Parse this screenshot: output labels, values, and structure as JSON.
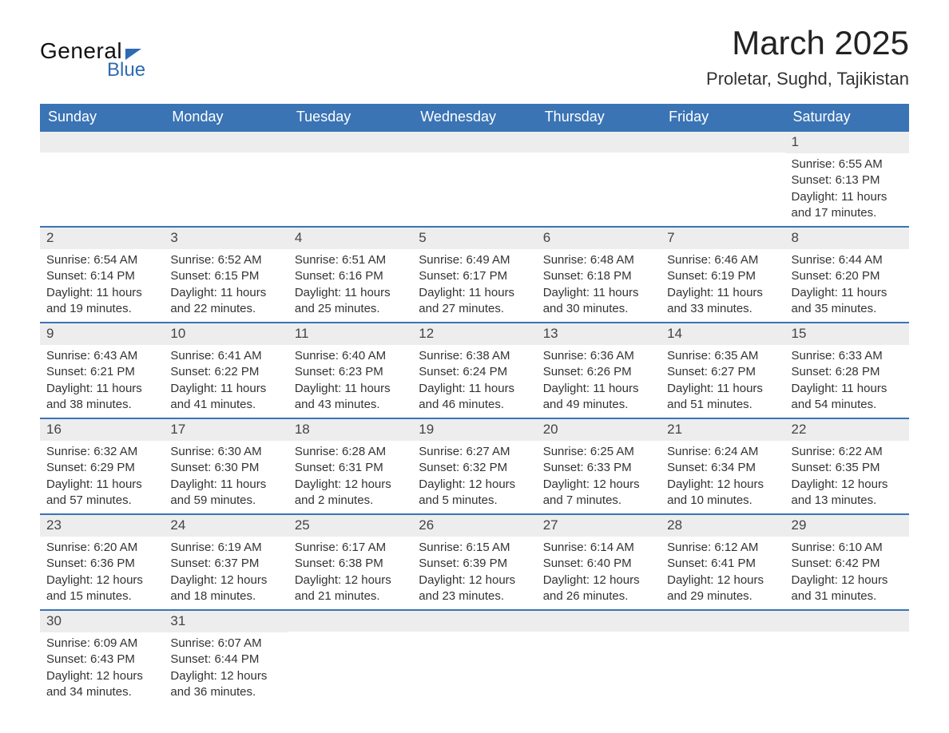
{
  "brand": {
    "word1": "General",
    "word2": "Blue",
    "accent": "#2f6bb0"
  },
  "title": "March 2025",
  "subtitle": "Proletar, Sughd, Tajikistan",
  "colors": {
    "header_bg": "#3a74b4",
    "header_text": "#ffffff",
    "strip_bg": "#ededed",
    "week_divider": "#3a74b4",
    "body_text": "#333333",
    "page_bg": "#ffffff"
  },
  "fonts": {
    "title_size": 42,
    "subtitle_size": 22,
    "dayhdr_size": 18,
    "daynum_size": 17,
    "body_size": 15
  },
  "day_headers": [
    "Sunday",
    "Monday",
    "Tuesday",
    "Wednesday",
    "Thursday",
    "Friday",
    "Saturday"
  ],
  "labels": {
    "sunrise": "Sunrise:",
    "sunset": "Sunset:",
    "daylight_prefix": "Daylight:"
  },
  "weeks": [
    [
      {
        "n": "",
        "sr": "",
        "ss": "",
        "dl": ""
      },
      {
        "n": "",
        "sr": "",
        "ss": "",
        "dl": ""
      },
      {
        "n": "",
        "sr": "",
        "ss": "",
        "dl": ""
      },
      {
        "n": "",
        "sr": "",
        "ss": "",
        "dl": ""
      },
      {
        "n": "",
        "sr": "",
        "ss": "",
        "dl": ""
      },
      {
        "n": "",
        "sr": "",
        "ss": "",
        "dl": ""
      },
      {
        "n": "1",
        "sr": "6:55 AM",
        "ss": "6:13 PM",
        "dl": "11 hours and 17 minutes."
      }
    ],
    [
      {
        "n": "2",
        "sr": "6:54 AM",
        "ss": "6:14 PM",
        "dl": "11 hours and 19 minutes."
      },
      {
        "n": "3",
        "sr": "6:52 AM",
        "ss": "6:15 PM",
        "dl": "11 hours and 22 minutes."
      },
      {
        "n": "4",
        "sr": "6:51 AM",
        "ss": "6:16 PM",
        "dl": "11 hours and 25 minutes."
      },
      {
        "n": "5",
        "sr": "6:49 AM",
        "ss": "6:17 PM",
        "dl": "11 hours and 27 minutes."
      },
      {
        "n": "6",
        "sr": "6:48 AM",
        "ss": "6:18 PM",
        "dl": "11 hours and 30 minutes."
      },
      {
        "n": "7",
        "sr": "6:46 AM",
        "ss": "6:19 PM",
        "dl": "11 hours and 33 minutes."
      },
      {
        "n": "8",
        "sr": "6:44 AM",
        "ss": "6:20 PM",
        "dl": "11 hours and 35 minutes."
      }
    ],
    [
      {
        "n": "9",
        "sr": "6:43 AM",
        "ss": "6:21 PM",
        "dl": "11 hours and 38 minutes."
      },
      {
        "n": "10",
        "sr": "6:41 AM",
        "ss": "6:22 PM",
        "dl": "11 hours and 41 minutes."
      },
      {
        "n": "11",
        "sr": "6:40 AM",
        "ss": "6:23 PM",
        "dl": "11 hours and 43 minutes."
      },
      {
        "n": "12",
        "sr": "6:38 AM",
        "ss": "6:24 PM",
        "dl": "11 hours and 46 minutes."
      },
      {
        "n": "13",
        "sr": "6:36 AM",
        "ss": "6:26 PM",
        "dl": "11 hours and 49 minutes."
      },
      {
        "n": "14",
        "sr": "6:35 AM",
        "ss": "6:27 PM",
        "dl": "11 hours and 51 minutes."
      },
      {
        "n": "15",
        "sr": "6:33 AM",
        "ss": "6:28 PM",
        "dl": "11 hours and 54 minutes."
      }
    ],
    [
      {
        "n": "16",
        "sr": "6:32 AM",
        "ss": "6:29 PM",
        "dl": "11 hours and 57 minutes."
      },
      {
        "n": "17",
        "sr": "6:30 AM",
        "ss": "6:30 PM",
        "dl": "11 hours and 59 minutes."
      },
      {
        "n": "18",
        "sr": "6:28 AM",
        "ss": "6:31 PM",
        "dl": "12 hours and 2 minutes."
      },
      {
        "n": "19",
        "sr": "6:27 AM",
        "ss": "6:32 PM",
        "dl": "12 hours and 5 minutes."
      },
      {
        "n": "20",
        "sr": "6:25 AM",
        "ss": "6:33 PM",
        "dl": "12 hours and 7 minutes."
      },
      {
        "n": "21",
        "sr": "6:24 AM",
        "ss": "6:34 PM",
        "dl": "12 hours and 10 minutes."
      },
      {
        "n": "22",
        "sr": "6:22 AM",
        "ss": "6:35 PM",
        "dl": "12 hours and 13 minutes."
      }
    ],
    [
      {
        "n": "23",
        "sr": "6:20 AM",
        "ss": "6:36 PM",
        "dl": "12 hours and 15 minutes."
      },
      {
        "n": "24",
        "sr": "6:19 AM",
        "ss": "6:37 PM",
        "dl": "12 hours and 18 minutes."
      },
      {
        "n": "25",
        "sr": "6:17 AM",
        "ss": "6:38 PM",
        "dl": "12 hours and 21 minutes."
      },
      {
        "n": "26",
        "sr": "6:15 AM",
        "ss": "6:39 PM",
        "dl": "12 hours and 23 minutes."
      },
      {
        "n": "27",
        "sr": "6:14 AM",
        "ss": "6:40 PM",
        "dl": "12 hours and 26 minutes."
      },
      {
        "n": "28",
        "sr": "6:12 AM",
        "ss": "6:41 PM",
        "dl": "12 hours and 29 minutes."
      },
      {
        "n": "29",
        "sr": "6:10 AM",
        "ss": "6:42 PM",
        "dl": "12 hours and 31 minutes."
      }
    ],
    [
      {
        "n": "30",
        "sr": "6:09 AM",
        "ss": "6:43 PM",
        "dl": "12 hours and 34 minutes."
      },
      {
        "n": "31",
        "sr": "6:07 AM",
        "ss": "6:44 PM",
        "dl": "12 hours and 36 minutes."
      },
      {
        "n": "",
        "sr": "",
        "ss": "",
        "dl": ""
      },
      {
        "n": "",
        "sr": "",
        "ss": "",
        "dl": ""
      },
      {
        "n": "",
        "sr": "",
        "ss": "",
        "dl": ""
      },
      {
        "n": "",
        "sr": "",
        "ss": "",
        "dl": ""
      },
      {
        "n": "",
        "sr": "",
        "ss": "",
        "dl": ""
      }
    ]
  ]
}
